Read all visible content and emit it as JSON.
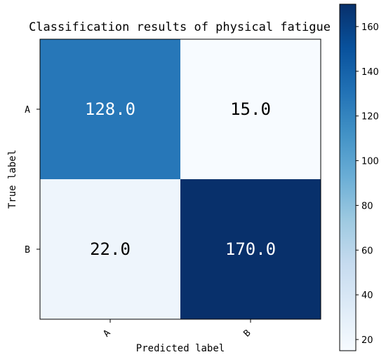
{
  "chart_data": {
    "type": "heatmap",
    "title": "Classification results of physical fatigue",
    "xlabel": "Predicted label",
    "ylabel": "True label",
    "x_categories": [
      "A",
      "B"
    ],
    "y_categories": [
      "A",
      "B"
    ],
    "values": [
      [
        128.0,
        15.0
      ],
      [
        22.0,
        170.0
      ]
    ],
    "cell_labels": [
      [
        "128.0",
        "15.0"
      ],
      [
        "22.0",
        "170.0"
      ]
    ],
    "colormap": "Blues",
    "colorbar": {
      "range": [
        15,
        170
      ],
      "ticks": [
        20,
        40,
        60,
        80,
        100,
        120,
        140,
        160
      ],
      "tick_labels": [
        "20",
        "40",
        "60",
        "80",
        "100",
        "120",
        "140",
        "160"
      ]
    }
  }
}
